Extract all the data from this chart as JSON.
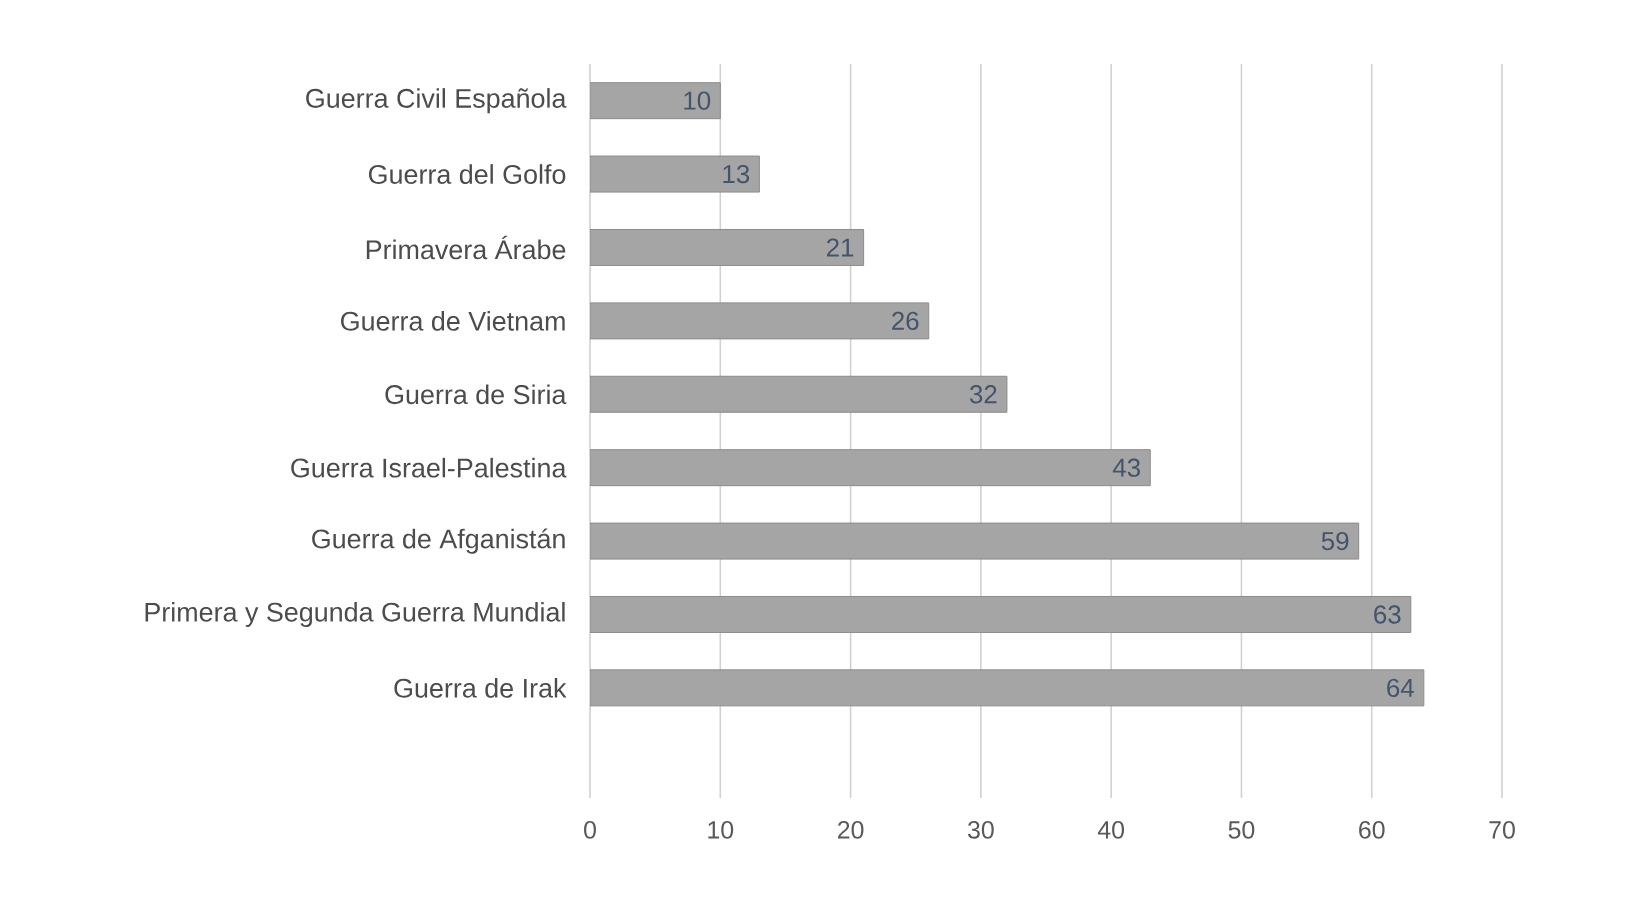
{
  "chart_data": {
    "type": "bar",
    "orientation": "horizontal",
    "categories": [
      "Guerra Civil Española",
      "Guerra del Golfo",
      "Primavera Árabe",
      "Guerra de Vietnam",
      "Guerra de Siria",
      "Guerra Israel-Palestina",
      "Guerra de Afganistán",
      "Primera y Segunda Guerra Mundial",
      "Guerra de Irak"
    ],
    "values": [
      10,
      13,
      21,
      26,
      32,
      43,
      59,
      63,
      64
    ],
    "color": "#a5a5a5",
    "xlim": [
      0,
      70
    ],
    "xticks": [
      0,
      10,
      20,
      30,
      40,
      50,
      60,
      70
    ],
    "grid": "x",
    "data_labels": true
  }
}
